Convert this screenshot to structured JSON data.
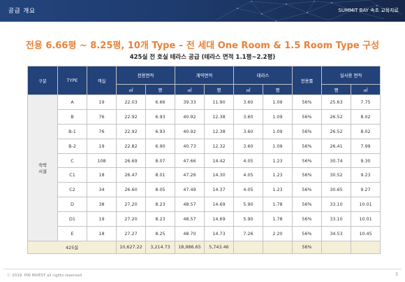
{
  "header": {
    "title": "공급 개요",
    "brand": "SUMMIT BAY 속초 교육자료"
  },
  "title": "전용 6.66평 ~ 8.25평, 10개 Type – 전 세대 One Room & 1.5 Room Type 구성",
  "subtitle": "425실 전 호실 테라스 공급 (테라스 면적 1.1평~2.2평)",
  "table": {
    "headers": {
      "category": "구분",
      "type": "TYPE",
      "rooms": "객실",
      "exclusive": "전용면적",
      "contract": "계약면적",
      "terrace": "테라스",
      "ratio": "전용률",
      "actual": "실사용 면적"
    },
    "units": {
      "m2": "㎡",
      "pyeong": "평"
    },
    "category_label": "숙박\n시설",
    "rows": [
      {
        "type": "A",
        "rooms": "19",
        "ex_m2": "22.03",
        "ex_py": "6.66",
        "ct_m2": "39.33",
        "ct_py": "11.90",
        "tr_m2": "3.60",
        "tr_py": "1.09",
        "ratio": "56%",
        "ac_py": "25.63",
        "ac_m2": "7.75"
      },
      {
        "type": "B",
        "rooms": "76",
        "ex_m2": "22.92",
        "ex_py": "6.93",
        "ct_m2": "40.92",
        "ct_py": "12.38",
        "tr_m2": "3.60",
        "tr_py": "1.09",
        "ratio": "56%",
        "ac_py": "26.52",
        "ac_m2": "8.02"
      },
      {
        "type": "B-1",
        "rooms": "76",
        "ex_m2": "22.92",
        "ex_py": "6.93",
        "ct_m2": "40.92",
        "ct_py": "12.38",
        "tr_m2": "3.60",
        "tr_py": "1.09",
        "ratio": "56%",
        "ac_py": "26.52",
        "ac_m2": "8.02"
      },
      {
        "type": "B-2",
        "rooms": "19",
        "ex_m2": "22.82",
        "ex_py": "6.90",
        "ct_m2": "40.73",
        "ct_py": "12.32",
        "tr_m2": "3.60",
        "tr_py": "1.09",
        "ratio": "56%",
        "ac_py": "26.41",
        "ac_m2": "7.99"
      },
      {
        "type": "C",
        "rooms": "108",
        "ex_m2": "26.69",
        "ex_py": "8.07",
        "ct_m2": "47.66",
        "ct_py": "14.42",
        "tr_m2": "4.05",
        "tr_py": "1.23",
        "ratio": "56%",
        "ac_py": "30.74",
        "ac_m2": "9.30"
      },
      {
        "type": "C1",
        "rooms": "18",
        "ex_m2": "26.47",
        "ex_py": "8.01",
        "ct_m2": "47.26",
        "ct_py": "14.30",
        "tr_m2": "4.05",
        "tr_py": "1.23",
        "ratio": "56%",
        "ac_py": "30.52",
        "ac_m2": "9.23"
      },
      {
        "type": "C2",
        "rooms": "34",
        "ex_m2": "26.60",
        "ex_py": "8.05",
        "ct_m2": "47.49",
        "ct_py": "14.37",
        "tr_m2": "4.05",
        "tr_py": "1.23",
        "ratio": "56%",
        "ac_py": "30.65",
        "ac_m2": "9.27"
      },
      {
        "type": "D",
        "rooms": "38",
        "ex_m2": "27.20",
        "ex_py": "8.23",
        "ct_m2": "48.57",
        "ct_py": "14.69",
        "tr_m2": "5.90",
        "tr_py": "1.78",
        "ratio": "56%",
        "ac_py": "33.10",
        "ac_m2": "10.01"
      },
      {
        "type": "D1",
        "rooms": "19",
        "ex_m2": "27.20",
        "ex_py": "8.23",
        "ct_m2": "48.57",
        "ct_py": "14.69",
        "tr_m2": "5.90",
        "tr_py": "1.78",
        "ratio": "56%",
        "ac_py": "33.10",
        "ac_m2": "10.01"
      },
      {
        "type": "E",
        "rooms": "18",
        "ex_m2": "27.27",
        "ex_py": "8.25",
        "ct_m2": "48.70",
        "ct_py": "14.73",
        "tr_m2": "7.26",
        "tr_py": "2.20",
        "ratio": "56%",
        "ac_py": "34.53",
        "ac_m2": "10.45"
      }
    ],
    "total": {
      "label": "425실",
      "ex_m2": "10,627.22",
      "ex_py": "3,214.73",
      "ct_m2": "18,986.65",
      "ct_py": "5,743.46",
      "ratio": "56%"
    }
  },
  "footer": {
    "copyright": "ⓒ 2019. PIN INVEST all rights reserved",
    "page": "3"
  },
  "colors": {
    "header_bg": "#1e3b6d",
    "table_header": "#23427a",
    "title_orange": "#e8823a",
    "total_row": "#f5efd9"
  }
}
